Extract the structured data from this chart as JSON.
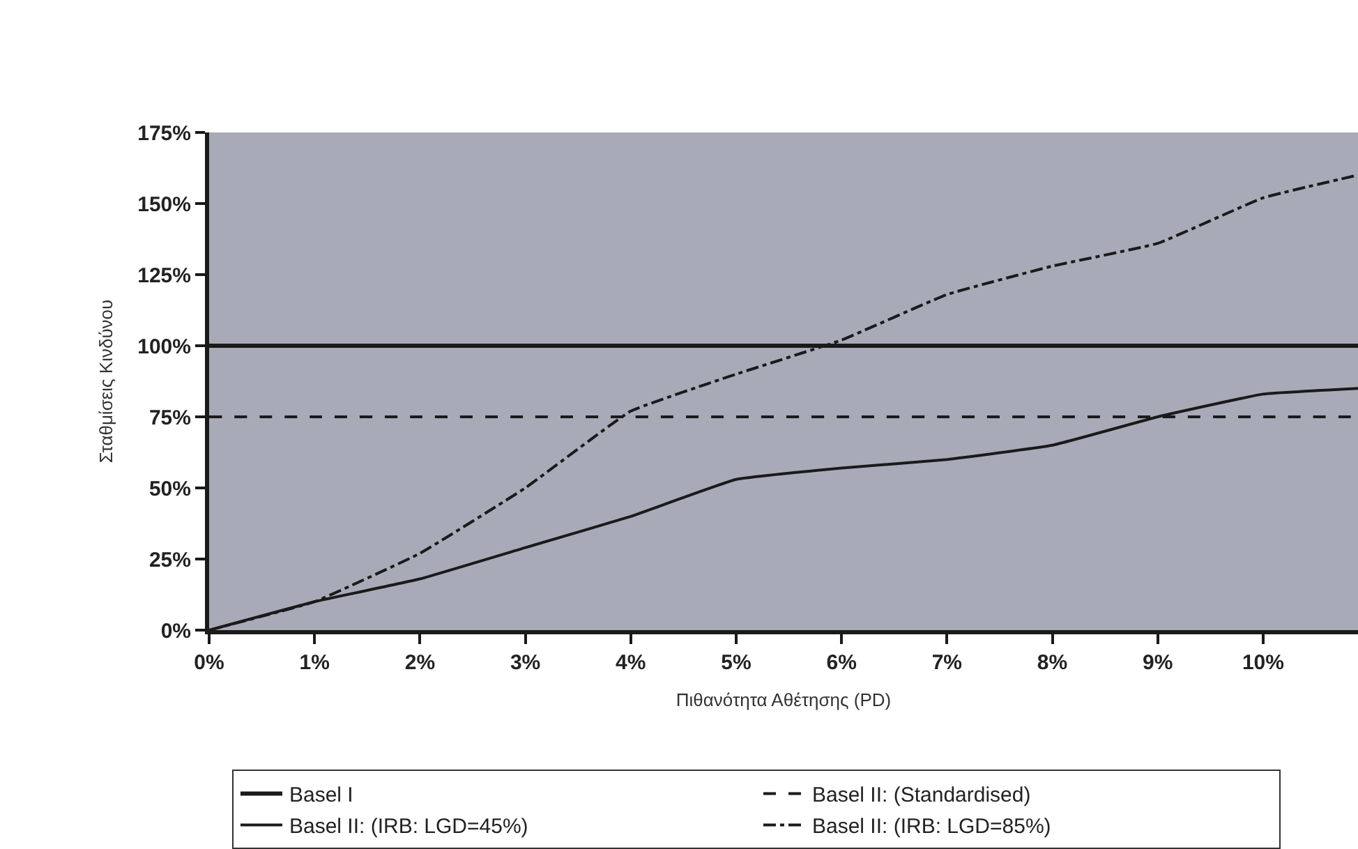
{
  "chart_data": {
    "type": "line",
    "xlabel": "Πιθανότητα Αθέτησης (PD)",
    "ylabel": "Σταθμίσεις Κινδύνου",
    "x": [
      0,
      1,
      2,
      3,
      4,
      5,
      6,
      7,
      8,
      9,
      10,
      10.9
    ],
    "series": [
      {
        "name": "Basel I",
        "color": "#1a1a1a",
        "line_style": "solid",
        "values": [
          100,
          100,
          100,
          100,
          100,
          100,
          100,
          100,
          100,
          100,
          100,
          100
        ]
      },
      {
        "name": "Basel II: (Standardised)",
        "color": "#1a1a1a",
        "line_style": "dashed",
        "values": [
          75,
          75,
          75,
          75,
          75,
          75,
          75,
          75,
          75,
          75,
          75,
          75
        ]
      },
      {
        "name": "Basel II: (IRB: LGD=45%)",
        "color": "#1a1a1a",
        "line_style": "solid",
        "values": [
          0,
          10,
          18,
          29,
          40,
          53,
          57,
          60,
          65,
          75,
          83,
          85
        ]
      },
      {
        "name": "Basel II: (IRB: LGD=85%)",
        "color": "#1a1a1a",
        "line_style": "dashdot",
        "values": [
          0,
          10,
          27,
          50,
          77,
          90,
          102,
          118,
          128,
          136,
          152,
          160
        ]
      }
    ],
    "xlim": [
      0,
      10.9
    ],
    "xticks": [
      {
        "value": 0,
        "label": "0%"
      },
      {
        "value": 1,
        "label": "1%"
      },
      {
        "value": 2,
        "label": "2%"
      },
      {
        "value": 3,
        "label": "3%"
      },
      {
        "value": 4,
        "label": "4%"
      },
      {
        "value": 5,
        "label": "5%"
      },
      {
        "value": 6,
        "label": "6%"
      },
      {
        "value": 7,
        "label": "7%"
      },
      {
        "value": 8,
        "label": "8%"
      },
      {
        "value": 9,
        "label": "9%"
      },
      {
        "value": 10,
        "label": "10%"
      }
    ],
    "ylim": [
      0,
      175
    ],
    "yticks": [
      {
        "value": 0,
        "label": "0%"
      },
      {
        "value": 25,
        "label": "25%"
      },
      {
        "value": 50,
        "label": "50%"
      },
      {
        "value": 75,
        "label": "75%"
      },
      {
        "value": 100,
        "label": "100%"
      },
      {
        "value": 125,
        "label": "125%"
      },
      {
        "value": 150,
        "label": "150%"
      },
      {
        "value": 175,
        "label": "175%"
      }
    ],
    "grid": false,
    "legend": "bottom",
    "marker": "none"
  }
}
